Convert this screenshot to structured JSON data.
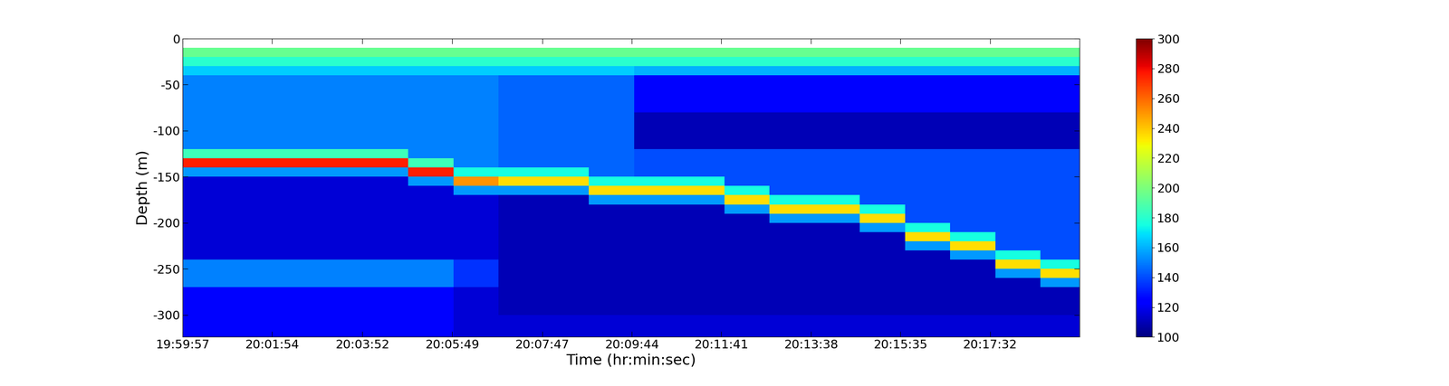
{
  "chart_data": {
    "type": "heatmap",
    "xlabel": "Time (hr:min:sec)",
    "ylabel": "Depth (m)",
    "xlim": [
      71997,
      73169
    ],
    "ylim": [
      -324,
      0
    ],
    "xticks": [
      {
        "value": 71997,
        "label": "19:59:57"
      },
      {
        "value": 72114,
        "label": "20:01:54"
      },
      {
        "value": 72232,
        "label": "20:03:52"
      },
      {
        "value": 72349,
        "label": "20:05:49"
      },
      {
        "value": 72467,
        "label": "20:07:47"
      },
      {
        "value": 72584,
        "label": "20:09:44"
      },
      {
        "value": 72701,
        "label": "20:11:41"
      },
      {
        "value": 72818,
        "label": "20:13:38"
      },
      {
        "value": 72935,
        "label": "20:15:35"
      },
      {
        "value": 73052,
        "label": "20:17:32"
      }
    ],
    "yticks": [
      0,
      -50,
      -100,
      -150,
      -200,
      -250,
      -300
    ],
    "x_edges": [
      71997,
      72056,
      72115,
      72174,
      72233,
      72292,
      72351,
      72410,
      72469,
      72528,
      72587,
      72646,
      72705,
      72764,
      72823,
      72882,
      72941,
      73000,
      73059,
      73118,
      73177
    ],
    "y_edges": [
      -10,
      -20,
      -30,
      -40,
      -50,
      -60,
      -70,
      -80,
      -90,
      -100,
      -110,
      -120,
      -130,
      -140,
      -150,
      -160,
      -170,
      -180,
      -190,
      -200,
      -210,
      -220,
      -230,
      -240,
      -250,
      -260,
      -270,
      -280,
      -290,
      -300,
      -310,
      -320,
      -324
    ],
    "cells": [
      [
        195,
        195,
        195,
        195,
        195,
        195,
        195,
        195,
        195,
        195,
        195,
        195,
        195,
        195,
        195,
        195,
        195,
        195,
        195,
        195
      ],
      [
        180,
        180,
        180,
        180,
        180,
        180,
        180,
        180,
        180,
        180,
        180,
        180,
        180,
        180,
        180,
        180,
        180,
        180,
        180,
        180
      ],
      [
        165,
        165,
        165,
        165,
        165,
        165,
        165,
        165,
        165,
        165,
        160,
        160,
        160,
        160,
        160,
        160,
        160,
        160,
        160,
        160
      ],
      [
        150,
        150,
        150,
        150,
        150,
        150,
        150,
        145,
        145,
        145,
        125,
        125,
        125,
        125,
        125,
        125,
        125,
        125,
        125,
        125
      ],
      [
        150,
        150,
        150,
        150,
        150,
        150,
        150,
        145,
        145,
        145,
        125,
        125,
        125,
        125,
        125,
        125,
        125,
        125,
        125,
        125
      ],
      [
        150,
        150,
        150,
        150,
        150,
        150,
        150,
        145,
        145,
        145,
        125,
        125,
        125,
        125,
        125,
        125,
        125,
        125,
        125,
        125
      ],
      [
        150,
        150,
        150,
        150,
        150,
        150,
        150,
        145,
        145,
        145,
        125,
        125,
        125,
        125,
        125,
        125,
        125,
        125,
        125,
        125
      ],
      [
        150,
        150,
        150,
        150,
        150,
        150,
        150,
        145,
        145,
        145,
        110,
        110,
        110,
        110,
        110,
        110,
        110,
        110,
        110,
        110
      ],
      [
        150,
        150,
        150,
        150,
        150,
        150,
        150,
        145,
        145,
        145,
        110,
        110,
        110,
        110,
        110,
        110,
        110,
        110,
        110,
        110
      ],
      [
        150,
        150,
        150,
        150,
        150,
        150,
        150,
        145,
        145,
        145,
        110,
        110,
        110,
        110,
        110,
        110,
        110,
        110,
        110,
        110
      ],
      [
        150,
        150,
        150,
        150,
        150,
        150,
        150,
        145,
        145,
        145,
        110,
        110,
        110,
        110,
        110,
        110,
        110,
        110,
        110,
        110
      ],
      [
        185,
        185,
        185,
        185,
        185,
        150,
        150,
        145,
        145,
        145,
        140,
        140,
        140,
        140,
        140,
        140,
        140,
        140,
        140,
        140
      ],
      [
        275,
        275,
        275,
        275,
        275,
        185,
        150,
        145,
        145,
        145,
        140,
        140,
        140,
        140,
        140,
        140,
        140,
        140,
        140,
        140
      ],
      [
        155,
        155,
        155,
        155,
        155,
        275,
        175,
        175,
        175,
        145,
        140,
        140,
        140,
        140,
        140,
        140,
        140,
        140,
        140,
        140
      ],
      [
        115,
        115,
        115,
        115,
        115,
        155,
        250,
        235,
        235,
        175,
        175,
        175,
        140,
        140,
        140,
        140,
        140,
        140,
        140,
        140
      ],
      [
        115,
        115,
        115,
        115,
        115,
        115,
        155,
        155,
        155,
        235,
        235,
        235,
        175,
        140,
        140,
        140,
        140,
        140,
        140,
        140
      ],
      [
        115,
        115,
        115,
        115,
        115,
        115,
        115,
        110,
        110,
        155,
        155,
        155,
        235,
        175,
        175,
        140,
        140,
        140,
        140,
        140
      ],
      [
        115,
        115,
        115,
        115,
        115,
        115,
        115,
        110,
        110,
        110,
        110,
        110,
        155,
        235,
        235,
        175,
        140,
        140,
        140,
        140
      ],
      [
        115,
        115,
        115,
        115,
        115,
        115,
        115,
        110,
        110,
        110,
        110,
        110,
        110,
        155,
        155,
        235,
        140,
        140,
        140,
        140
      ],
      [
        115,
        115,
        115,
        115,
        115,
        115,
        115,
        110,
        110,
        110,
        110,
        110,
        110,
        110,
        110,
        155,
        175,
        140,
        140,
        140
      ],
      [
        115,
        115,
        115,
        115,
        115,
        115,
        115,
        110,
        110,
        110,
        110,
        110,
        110,
        110,
        110,
        110,
        235,
        175,
        140,
        140
      ],
      [
        115,
        115,
        115,
        115,
        115,
        115,
        115,
        110,
        110,
        110,
        110,
        110,
        110,
        110,
        110,
        110,
        155,
        235,
        140,
        140
      ],
      [
        115,
        115,
        115,
        115,
        115,
        115,
        115,
        110,
        110,
        110,
        110,
        110,
        110,
        110,
        110,
        110,
        110,
        155,
        175,
        140
      ],
      [
        150,
        150,
        150,
        150,
        150,
        150,
        135,
        110,
        110,
        110,
        110,
        110,
        110,
        110,
        110,
        110,
        110,
        110,
        235,
        175
      ],
      [
        150,
        150,
        150,
        150,
        150,
        150,
        135,
        110,
        110,
        110,
        110,
        110,
        110,
        110,
        110,
        110,
        110,
        110,
        155,
        235
      ],
      [
        150,
        150,
        150,
        150,
        150,
        150,
        135,
        110,
        110,
        110,
        110,
        110,
        110,
        110,
        110,
        110,
        110,
        110,
        110,
        155
      ],
      [
        125,
        125,
        125,
        125,
        125,
        125,
        115,
        110,
        110,
        110,
        110,
        110,
        110,
        110,
        110,
        110,
        110,
        110,
        110,
        110
      ],
      [
        125,
        125,
        125,
        125,
        125,
        125,
        115,
        110,
        110,
        110,
        110,
        110,
        110,
        110,
        110,
        110,
        110,
        110,
        110,
        110
      ],
      [
        125,
        125,
        125,
        125,
        125,
        125,
        115,
        110,
        110,
        110,
        110,
        110,
        110,
        110,
        110,
        110,
        110,
        110,
        110,
        110
      ],
      [
        125,
        125,
        125,
        125,
        125,
        125,
        115,
        115,
        115,
        115,
        115,
        115,
        115,
        115,
        115,
        115,
        115,
        115,
        115,
        115
      ],
      [
        125,
        125,
        125,
        125,
        125,
        125,
        115,
        115,
        115,
        115,
        115,
        115,
        115,
        115,
        115,
        115,
        115,
        115,
        115,
        115
      ],
      [
        125,
        125,
        125,
        125,
        125,
        125,
        115,
        115,
        115,
        115,
        115,
        115,
        115,
        115,
        115,
        115,
        115,
        115,
        115,
        115
      ]
    ],
    "colorbar": {
      "range": [
        100,
        300
      ],
      "ticks": [
        100,
        120,
        140,
        160,
        180,
        200,
        220,
        240,
        260,
        280,
        300
      ]
    }
  }
}
